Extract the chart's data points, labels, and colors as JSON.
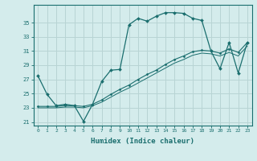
{
  "xlabel": "Humidex (Indice chaleur)",
  "xlim": [
    -0.5,
    23.5
  ],
  "ylim": [
    20.5,
    37.5
  ],
  "xticks": [
    0,
    1,
    2,
    3,
    4,
    5,
    6,
    7,
    8,
    9,
    10,
    11,
    12,
    13,
    14,
    15,
    16,
    17,
    18,
    19,
    20,
    21,
    22,
    23
  ],
  "yticks": [
    21,
    23,
    25,
    27,
    29,
    31,
    33,
    35
  ],
  "bg_color": "#d4ecec",
  "grid_color": "#b8d4d4",
  "line_color": "#1a6e6e",
  "line1_x": [
    0,
    1,
    2,
    3,
    4,
    5,
    6,
    7,
    8,
    9,
    10,
    11,
    12,
    13,
    14,
    15,
    16,
    17,
    18,
    19,
    20,
    21,
    22,
    23
  ],
  "line1_y": [
    27.5,
    24.9,
    23.3,
    23.5,
    23.3,
    21.1,
    23.5,
    26.7,
    28.3,
    28.4,
    34.7,
    35.6,
    35.2,
    35.9,
    36.4,
    36.4,
    36.3,
    35.6,
    35.3,
    31.0,
    28.5,
    32.2,
    27.9,
    32.2
  ],
  "line2_x": [
    0,
    1,
    2,
    3,
    4,
    5,
    6,
    7,
    8,
    9,
    10,
    11,
    12,
    13,
    14,
    15,
    16,
    17,
    18,
    19,
    20,
    21,
    22,
    23
  ],
  "line2_y": [
    23.2,
    23.2,
    23.2,
    23.3,
    23.3,
    23.2,
    23.5,
    24.1,
    24.9,
    25.6,
    26.2,
    27.0,
    27.7,
    28.3,
    29.1,
    29.8,
    30.3,
    30.9,
    31.1,
    31.0,
    30.7,
    31.3,
    30.8,
    32.2
  ],
  "line3_x": [
    0,
    1,
    2,
    3,
    4,
    5,
    6,
    7,
    8,
    9,
    10,
    11,
    12,
    13,
    14,
    15,
    16,
    17,
    18,
    19,
    20,
    21,
    22,
    23
  ],
  "line3_y": [
    23.0,
    23.0,
    23.0,
    23.1,
    23.1,
    23.0,
    23.3,
    23.8,
    24.5,
    25.2,
    25.8,
    26.5,
    27.2,
    27.9,
    28.6,
    29.3,
    29.8,
    30.4,
    30.7,
    30.6,
    30.3,
    30.8,
    30.3,
    31.7
  ]
}
